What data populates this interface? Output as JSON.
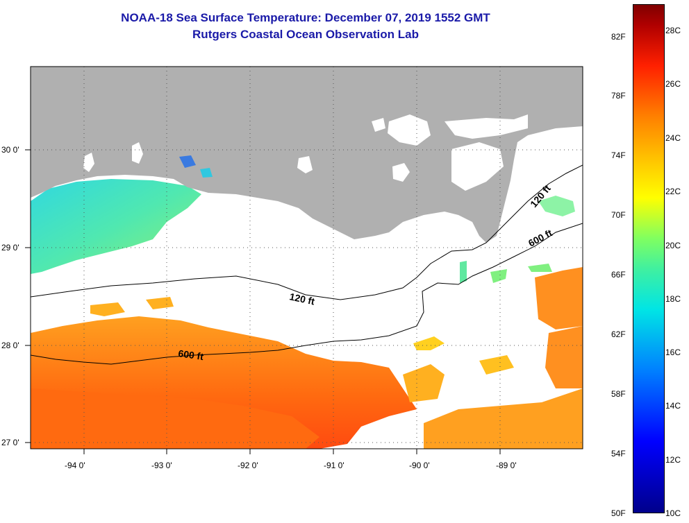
{
  "title": "NOAA-18 Sea Surface Temperature:  December 07, 2019 1552 GMT",
  "subtitle": "Rutgers Coastal Ocean Observation Lab",
  "map": {
    "x_ticks": [
      {
        "lon": -94.0,
        "label": "-94 0'"
      },
      {
        "lon": -93.0,
        "label": "-93 0'"
      },
      {
        "lon": -92.0,
        "label": "-92 0'"
      },
      {
        "lon": -91.0,
        "label": "-91 0'"
      },
      {
        "lon": -90.0,
        "label": "-90 0'"
      },
      {
        "lon": -89.0,
        "label": "-89 0'"
      }
    ],
    "y_ticks": [
      {
        "lat": 30.0,
        "label": "30 0'"
      },
      {
        "lat": 29.0,
        "label": "29 0'"
      },
      {
        "lat": 28.0,
        "label": "28 0'"
      },
      {
        "lat": 27.0,
        "label": "27 0'"
      }
    ],
    "contour_labels": [
      "120 ft",
      "600 ft",
      "120 ft",
      "600 ft"
    ],
    "colors": {
      "land": "#b0b0b0",
      "cloud": "#ffffff",
      "water_cool": "#3ee0c8",
      "water_warm": "#ff7a10"
    }
  },
  "colorbar": {
    "f_labels": [
      "82F",
      "78F",
      "74F",
      "70F",
      "66F",
      "62F",
      "58F",
      "54F",
      "50F"
    ],
    "c_labels": [
      "28C",
      "26C",
      "24C",
      "22C",
      "20C",
      "18C",
      "16C",
      "14C",
      "12C",
      "10C"
    ]
  }
}
